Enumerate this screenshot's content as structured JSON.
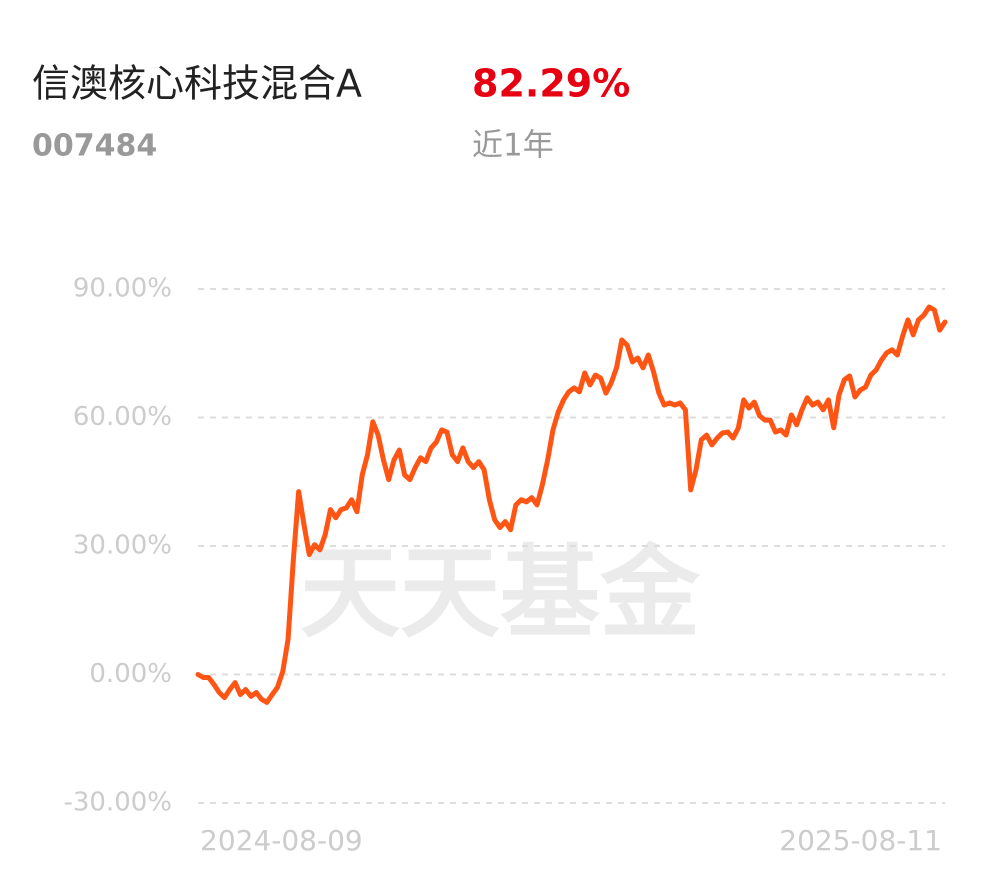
{
  "chart_data": {
    "type": "line",
    "title": "信澳核心科技混合A",
    "fund_code": "007484",
    "return_label": "82.29%",
    "period": "近1年",
    "watermark": "天天基金",
    "color": "#ff5514",
    "grid": true,
    "ylim": [
      -30,
      90
    ],
    "yticks": [
      {
        "value": -30,
        "label": "-30.00%"
      },
      {
        "value": 0,
        "label": "0.00%"
      },
      {
        "value": 30,
        "label": "30.00%"
      },
      {
        "value": 60,
        "label": "60.00%"
      },
      {
        "value": 90,
        "label": "90.00%"
      }
    ],
    "categories": [
      "2024-08-09",
      null,
      null,
      null,
      null,
      null,
      null,
      null,
      null,
      null,
      null,
      null,
      null,
      null,
      null,
      null,
      null,
      null,
      null,
      null,
      null,
      null,
      null,
      null,
      null,
      null,
      null,
      null,
      null,
      null,
      null,
      null,
      null,
      null,
      null,
      null,
      null,
      null,
      null,
      null,
      null,
      null,
      null,
      null,
      null,
      null,
      null,
      null,
      null,
      null,
      null,
      null,
      null,
      null,
      null,
      null,
      null,
      null,
      null,
      null,
      null,
      null,
      null,
      null,
      null,
      null,
      null,
      null,
      null,
      null,
      null,
      null,
      null,
      null,
      null,
      null,
      null,
      null,
      null,
      null,
      null,
      null,
      null,
      null,
      null,
      null,
      null,
      null,
      null,
      null,
      null,
      null,
      null,
      null,
      null,
      null,
      null,
      null,
      null,
      null,
      null,
      null,
      null,
      null,
      null,
      null,
      null,
      null,
      null,
      null,
      null,
      null,
      null,
      null,
      null,
      null,
      null,
      null,
      null,
      null,
      null,
      null,
      null,
      null,
      null,
      null,
      null,
      null,
      null,
      null,
      null,
      null,
      null,
      null,
      null,
      null,
      null,
      null,
      null,
      null,
      null,
      "2025-08-11"
    ],
    "values": [
      0,
      -0.7,
      -0.7,
      -2.3,
      -4.2,
      -5.4,
      -3.5,
      -1.9,
      -4.7,
      -3.5,
      -5.1,
      -4.2,
      -5.8,
      -6.5,
      -4.7,
      -3.0,
      0.7,
      8.2,
      26.8,
      42.7,
      35.0,
      28.0,
      30.3,
      29.1,
      32.6,
      38.5,
      36.6,
      38.5,
      38.9,
      40.8,
      38.0,
      46.6,
      51.3,
      59.0,
      55.9,
      50.1,
      45.5,
      50.1,
      52.4,
      46.6,
      45.5,
      48.3,
      50.6,
      49.7,
      52.9,
      54.3,
      57.1,
      56.6,
      51.3,
      49.7,
      52.9,
      49.7,
      48.3,
      49.7,
      47.8,
      40.8,
      36.1,
      34.3,
      35.7,
      33.8,
      39.6,
      40.8,
      40.3,
      41.3,
      39.6,
      44.3,
      50.1,
      57.1,
      61.3,
      64.1,
      66.0,
      66.9,
      66.0,
      70.4,
      67.6,
      69.9,
      69.2,
      65.7,
      68.1,
      71.6,
      78.1,
      76.9,
      73.0,
      73.9,
      71.6,
      74.6,
      70.6,
      65.7,
      62.9,
      63.4,
      62.9,
      63.4,
      61.8,
      43.1,
      47.8,
      54.8,
      55.9,
      53.6,
      55.2,
      56.4,
      56.6,
      55.2,
      57.6,
      64.1,
      62.2,
      63.6,
      60.4,
      59.4,
      59.4,
      56.6,
      57.1,
      55.9,
      60.6,
      58.3,
      61.8,
      64.6,
      62.9,
      63.6,
      61.8,
      64.1,
      57.6,
      65.3,
      68.8,
      69.7,
      64.8,
      66.4,
      67.1,
      69.9,
      71.1,
      73.4,
      75.1,
      75.8,
      74.6,
      79.0,
      82.8,
      79.3,
      82.8,
      83.9,
      85.8,
      85.1,
      80.4,
      82.29
    ]
  }
}
